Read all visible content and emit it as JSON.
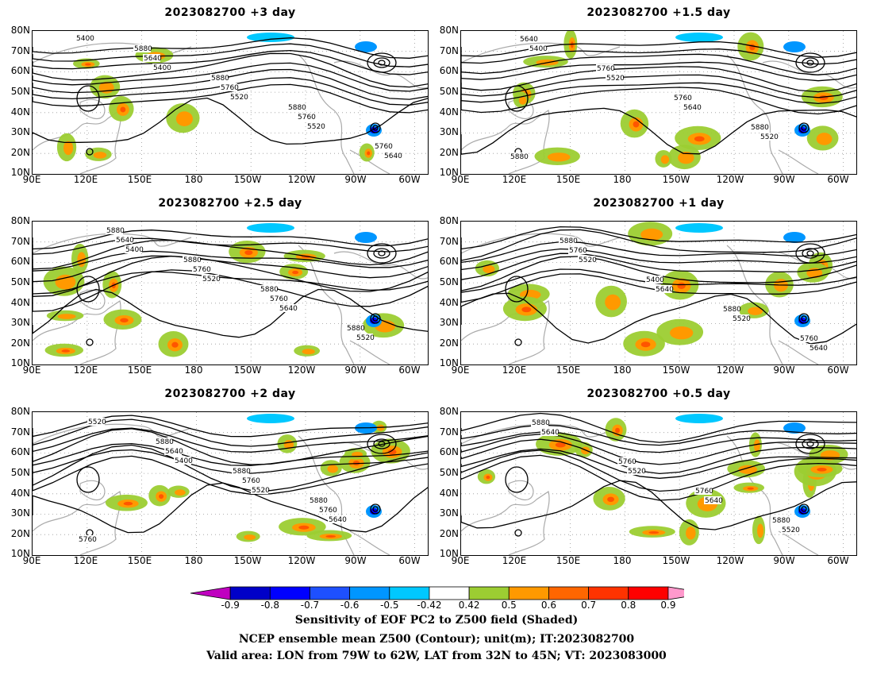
{
  "panels": [
    {
      "title": "2023082700 +3 day",
      "id": "p3",
      "col": 0,
      "row": 0,
      "contour_labels": [
        "5400",
        "5400",
        "5520",
        "5520",
        "5640",
        "5640",
        "5760",
        "5760",
        "5760",
        "5880",
        "5880",
        "5880"
      ],
      "shading": "sparse"
    },
    {
      "title": "2023082700 +1.5 day",
      "id": "p15",
      "col": 1,
      "row": 0,
      "contour_labels": [
        "5400",
        "5520",
        "5640",
        "5520",
        "5640",
        "5760",
        "5760",
        "5880",
        "5880"
      ],
      "shading": "moderate"
    },
    {
      "title": "2023082700 +2.5 day",
      "id": "p25",
      "col": 0,
      "row": 1,
      "contour_labels": [
        "5400",
        "5520",
        "5640",
        "5520",
        "5640",
        "5760",
        "5760",
        "5880",
        "5880",
        "5880",
        "5880"
      ],
      "shading": "moderate"
    },
    {
      "title": "2023082700 +1 day",
      "id": "p1",
      "col": 1,
      "row": 1,
      "contour_labels": [
        "5520",
        "5640",
        "5520",
        "5640",
        "5760",
        "5400",
        "5880",
        "5760",
        "5880"
      ],
      "shading": "moderate"
    },
    {
      "title": "2023082700 +2 day",
      "id": "p2",
      "col": 0,
      "row": 2,
      "contour_labels": [
        "5400",
        "5520",
        "5640",
        "5520",
        "5640",
        "5760",
        "5760",
        "5760",
        "5880",
        "5880",
        "5880"
      ],
      "shading": "moderate"
    },
    {
      "title": "2023082700 +0.5 day",
      "id": "p05",
      "col": 1,
      "row": 2,
      "contour_labels": [
        "5520",
        "5640",
        "5520",
        "5640",
        "5760",
        "5760",
        "5880",
        "5880"
      ],
      "shading": "dense"
    }
  ],
  "axes": {
    "lat_labels": [
      "80N",
      "70N",
      "60N",
      "50N",
      "40N",
      "30N",
      "20N",
      "10N"
    ],
    "lon_labels": [
      "90E",
      "120E",
      "150E",
      "180",
      "150W",
      "120W",
      "90W",
      "60W"
    ],
    "lat_range": [
      10,
      80
    ],
    "lon_range": [
      90,
      308
    ]
  },
  "colorbar": {
    "labels": [
      "-0.9",
      "-0.8",
      "-0.7",
      "-0.6",
      "-0.5",
      "-0.42",
      "0.42",
      "0.5",
      "0.6",
      "0.7",
      "0.8",
      "0.9"
    ],
    "colors": [
      "#c000c0",
      "#0000c8",
      "#0000ff",
      "#1e50ff",
      "#0096ff",
      "#00c8ff",
      "#ffffff",
      "#9ccd32",
      "#ff9900",
      "#ff6600",
      "#ff3300",
      "#ff0000",
      "#ff99cc"
    ]
  },
  "caption": {
    "line1": "Sensitivity of EOF PC2 to Z500 field (Shaded)",
    "line2": "NCEP ensemble mean Z500 (Contour); unit(m); IT:2023082700",
    "line3": "Valid area: LON from 79W to 62W, LAT from 32N to 45N; VT: 2023083000"
  }
}
